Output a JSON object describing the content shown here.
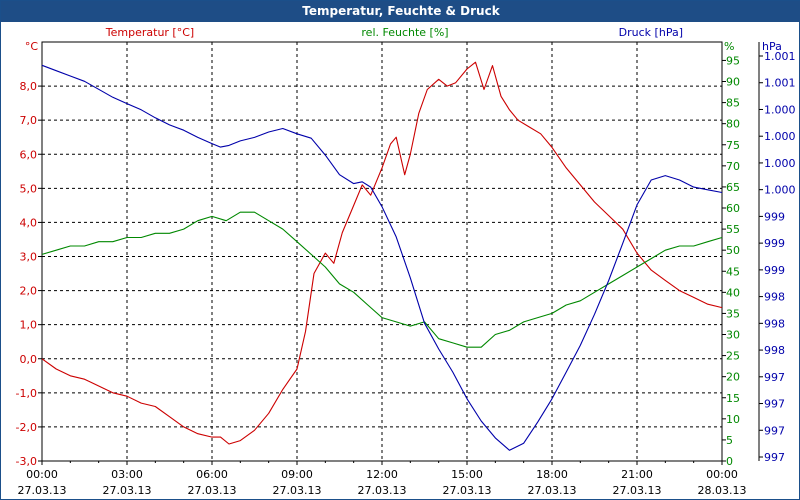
{
  "window": {
    "title": "Temperatur, Feuchte & Druck"
  },
  "colors": {
    "temperature": "#cc0000",
    "humidity": "#008800",
    "pressure": "#0000aa",
    "grid": "#000000",
    "titlebar": "#1e4d86"
  },
  "chart_data": {
    "type": "line",
    "title": "Temperatur, Feuchte & Druck",
    "grid": true,
    "x": {
      "range": [
        "00:00",
        "24:00"
      ],
      "tick_hours": [
        0,
        3,
        6,
        9,
        12,
        15,
        18,
        21,
        24
      ],
      "tick_time_labels": [
        "00:00",
        "03:00",
        "06:00",
        "09:00",
        "12:00",
        "15:00",
        "18:00",
        "21:00",
        "00:00"
      ],
      "tick_date_labels": [
        "27.03.13",
        "27.03.13",
        "27.03.13",
        "27.03.13",
        "27.03.13",
        "27.03.13",
        "27.03.13",
        "27.03.13",
        "28.03.13"
      ]
    },
    "axes": {
      "left": {
        "unit": "°C",
        "ylim": [
          -3.0,
          9.0
        ],
        "ticks": [
          8.0,
          7.0,
          6.0,
          5.0,
          4.0,
          3.0,
          2.0,
          1.0,
          0.0,
          -1.0,
          -2.0,
          -3.0
        ],
        "tick_labels": [
          "8,0",
          "7,0",
          "6,0",
          "5,0",
          "4,0",
          "3,0",
          "2,0",
          "1,0",
          "0,0",
          "-1,0",
          "-2,0",
          "-3,0"
        ]
      },
      "right1": {
        "unit": "%",
        "ylim": [
          0,
          97
        ],
        "ticks": [
          95,
          90,
          85,
          80,
          75,
          70,
          65,
          60,
          55,
          50,
          45,
          40,
          35,
          30,
          25,
          20,
          15,
          10,
          5,
          0
        ]
      },
      "right2": {
        "unit": "hPa",
        "tick_labels": [
          "1.001",
          "1.001",
          "1.000",
          "1.000",
          "1.000",
          "1.000",
          "999",
          "999",
          "999",
          "998",
          "998",
          "998",
          "997",
          "997",
          "997",
          "997"
        ]
      }
    },
    "series": [
      {
        "name": "Temperatur [°C]",
        "axis": "left",
        "x": [
          0,
          0.5,
          1,
          1.5,
          2,
          2.5,
          3,
          3.5,
          4,
          4.5,
          5,
          5.5,
          6,
          6.3,
          6.6,
          7,
          7.5,
          8,
          8.5,
          9,
          9.3,
          9.6,
          10,
          10.3,
          10.6,
          11,
          11.3,
          11.6,
          12,
          12.3,
          12.5,
          12.8,
          13,
          13.3,
          13.6,
          14,
          14.3,
          14.6,
          15,
          15.3,
          15.6,
          15.9,
          16.2,
          16.5,
          16.8,
          17.2,
          17.6,
          18,
          18.5,
          19,
          19.5,
          20,
          20.5,
          21,
          21.5,
          22,
          22.5,
          23,
          23.5,
          24
        ],
        "values": [
          0.0,
          -0.3,
          -0.5,
          -0.6,
          -0.8,
          -1.0,
          -1.1,
          -1.3,
          -1.4,
          -1.7,
          -2.0,
          -2.2,
          -2.3,
          -2.3,
          -2.5,
          -2.4,
          -2.1,
          -1.6,
          -0.9,
          -0.3,
          0.8,
          2.5,
          3.1,
          2.8,
          3.7,
          4.5,
          5.1,
          4.8,
          5.6,
          6.3,
          6.5,
          5.4,
          6.0,
          7.2,
          7.9,
          8.2,
          8.0,
          8.1,
          8.5,
          8.7,
          7.9,
          8.6,
          7.7,
          7.3,
          7.0,
          6.8,
          6.6,
          6.2,
          5.6,
          5.1,
          4.6,
          4.2,
          3.8,
          3.1,
          2.6,
          2.3,
          2.0,
          1.8,
          1.6,
          1.5
        ]
      },
      {
        "name": "rel. Feuchte [%]",
        "axis": "right1",
        "x": [
          0,
          0.5,
          1,
          1.5,
          2,
          2.5,
          3,
          3.5,
          4,
          4.5,
          5,
          5.5,
          6,
          6.5,
          7,
          7.5,
          8,
          8.5,
          9,
          9.5,
          10,
          10.5,
          11,
          11.5,
          12,
          12.5,
          13,
          13.5,
          14,
          14.5,
          15,
          15.5,
          16,
          16.5,
          17,
          17.5,
          18,
          18.5,
          19,
          19.5,
          20,
          20.5,
          21,
          21.5,
          22,
          22.5,
          23,
          23.5,
          24
        ],
        "values": [
          49,
          50,
          51,
          51,
          52,
          52,
          53,
          53,
          54,
          54,
          55,
          57,
          58,
          57,
          59,
          59,
          57,
          55,
          52,
          49,
          46,
          42,
          40,
          37,
          34,
          33,
          32,
          33,
          29,
          28,
          27,
          27,
          30,
          31,
          33,
          34,
          35,
          37,
          38,
          40,
          42,
          44,
          46,
          48,
          50,
          51,
          51,
          52,
          53
        ]
      },
      {
        "name": "Druck [hPa]",
        "axis": "right2",
        "x": [
          0,
          0.5,
          1,
          1.5,
          2,
          2.5,
          3,
          3.5,
          4,
          4.5,
          5,
          5.5,
          6,
          6.3,
          6.6,
          7,
          7.5,
          8,
          8.5,
          9,
          9.5,
          10,
          10.5,
          11,
          11.3,
          11.6,
          12,
          12.5,
          13,
          13.5,
          14,
          14.5,
          15,
          15.5,
          16,
          16.5,
          17,
          17.5,
          18,
          18.5,
          19,
          19.5,
          20,
          20.5,
          21,
          21.5,
          22,
          22.5,
          23,
          23.5,
          24
        ],
        "values": [
          1000.95,
          1000.89,
          1000.83,
          1000.77,
          1000.68,
          1000.59,
          1000.52,
          1000.45,
          1000.36,
          1000.28,
          1000.22,
          1000.14,
          1000.07,
          1000.03,
          1000.05,
          1000.1,
          1000.14,
          1000.2,
          1000.24,
          1000.18,
          1000.13,
          999.94,
          999.72,
          999.62,
          999.64,
          999.58,
          999.36,
          999.02,
          998.56,
          998.05,
          997.76,
          997.5,
          997.2,
          996.95,
          996.76,
          996.62,
          996.7,
          996.94,
          997.2,
          997.5,
          997.8,
          998.15,
          998.53,
          998.95,
          999.38,
          999.66,
          999.71,
          999.66,
          999.58,
          999.55,
          999.52
        ]
      }
    ]
  }
}
